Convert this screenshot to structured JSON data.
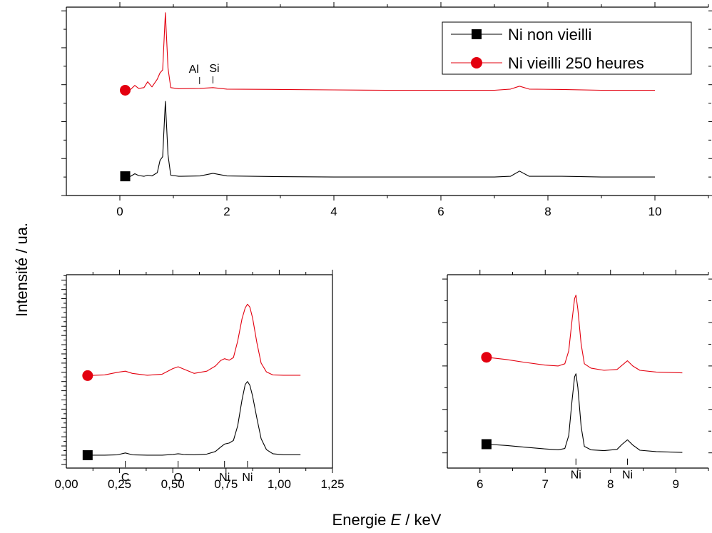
{
  "colors": {
    "aged": "#e3000f",
    "fresh": "#000000",
    "axis": "#000000"
  },
  "ylabel": "Intensité / ua.",
  "xlabel": {
    "prefix": "Energie ",
    "symbol": "E",
    "suffix": " / keV"
  },
  "legend": [
    {
      "label": "Ni non vieilli",
      "marker": "square",
      "color": "#000000"
    },
    {
      "label": "Ni vieilli 250 heures",
      "marker": "circle",
      "color": "#e3000f"
    }
  ],
  "chart_data": [
    {
      "id": "top",
      "type": "line",
      "xlim": [
        -1,
        11
      ],
      "xticks": [
        0,
        2,
        4,
        6,
        8,
        10
      ],
      "tick_labels": [
        "0",
        "2",
        "4",
        "6",
        "8",
        "10"
      ],
      "y_axis_labels": false,
      "peak_labels": [
        {
          "text": "Al",
          "x": 1.49,
          "series": "Ni vieilli 250 heures"
        },
        {
          "text": "Si",
          "x": 1.74,
          "series": "Ni vieilli 250 heures"
        }
      ],
      "series": [
        {
          "name": "Ni non vieilli",
          "color": "#000000",
          "marker": "square",
          "x": [
            0.1,
            0.2,
            0.28,
            0.35,
            0.45,
            0.52,
            0.6,
            0.7,
            0.75,
            0.8,
            0.85,
            0.9,
            0.95,
            1.1,
            1.5,
            1.74,
            2.0,
            3.0,
            4.0,
            5.0,
            6.0,
            7.0,
            7.3,
            7.47,
            7.65,
            8.26,
            9.0,
            10.0
          ],
          "y": [
            0.02,
            0.02,
            0.09,
            0.04,
            0.02,
            0.05,
            0.03,
            0.12,
            0.45,
            0.55,
            2.05,
            0.6,
            0.05,
            0.02,
            0.03,
            0.1,
            0.03,
            0.01,
            0.0,
            0.0,
            0.0,
            0.0,
            0.02,
            0.16,
            0.02,
            0.02,
            0.0,
            0.0
          ]
        },
        {
          "name": "Ni vieilli 250 heures",
          "color": "#e3000f",
          "marker": "circle",
          "x": [
            0.1,
            0.2,
            0.28,
            0.35,
            0.45,
            0.52,
            0.6,
            0.7,
            0.75,
            0.8,
            0.85,
            0.9,
            0.95,
            1.1,
            1.49,
            1.74,
            2.0,
            3.0,
            4.0,
            5.0,
            6.0,
            7.0,
            7.3,
            7.47,
            7.65,
            8.26,
            9.0,
            10.0
          ],
          "y": [
            2.35,
            2.37,
            2.48,
            2.4,
            2.42,
            2.58,
            2.44,
            2.65,
            2.82,
            2.9,
            4.45,
            2.95,
            2.42,
            2.39,
            2.4,
            2.42,
            2.38,
            2.37,
            2.36,
            2.35,
            2.35,
            2.35,
            2.38,
            2.46,
            2.38,
            2.37,
            2.35,
            2.35
          ]
        }
      ]
    },
    {
      "id": "bottom-left",
      "type": "line",
      "xlim": [
        0,
        1.25
      ],
      "xticks": [
        0,
        0.25,
        0.5,
        0.75,
        1.0,
        1.25
      ],
      "tick_labels": [
        "0,00",
        "0,25",
        "0,50",
        "0,75",
        "1,00",
        "1,25"
      ],
      "y_axis_labels": false,
      "peak_labels": [
        {
          "text": "C",
          "x": 0.277,
          "series": "Ni non vieilli"
        },
        {
          "text": "O",
          "x": 0.525,
          "series": "Ni non vieilli"
        },
        {
          "text": "Ni",
          "x": 0.743,
          "series": "Ni non vieilli"
        },
        {
          "text": "Ni",
          "x": 0.851,
          "series": "Ni non vieilli"
        }
      ],
      "series": [
        {
          "name": "Ni non vieilli",
          "color": "#000000",
          "marker": "square",
          "x": [
            0.1,
            0.18,
            0.24,
            0.277,
            0.31,
            0.38,
            0.45,
            0.5,
            0.525,
            0.55,
            0.6,
            0.66,
            0.7,
            0.725,
            0.743,
            0.765,
            0.785,
            0.805,
            0.825,
            0.84,
            0.851,
            0.862,
            0.875,
            0.895,
            0.915,
            0.94,
            0.97,
            1.02,
            1.1
          ],
          "y": [
            0.0,
            0.0,
            0.01,
            0.06,
            0.01,
            0.0,
            0.0,
            0.02,
            0.04,
            0.02,
            0.01,
            0.03,
            0.1,
            0.22,
            0.3,
            0.33,
            0.4,
            0.8,
            1.5,
            1.92,
            2.0,
            1.9,
            1.6,
            1.0,
            0.45,
            0.15,
            0.04,
            0.01,
            0.01
          ]
        },
        {
          "name": "Ni vieilli 250 heures",
          "color": "#e3000f",
          "marker": "circle",
          "x": [
            0.1,
            0.18,
            0.24,
            0.277,
            0.31,
            0.38,
            0.45,
            0.5,
            0.525,
            0.55,
            0.6,
            0.66,
            0.7,
            0.725,
            0.743,
            0.765,
            0.785,
            0.805,
            0.825,
            0.84,
            0.851,
            0.862,
            0.875,
            0.895,
            0.915,
            0.94,
            0.97,
            1.02,
            1.1
          ],
          "y": [
            2.16,
            2.18,
            2.25,
            2.28,
            2.22,
            2.17,
            2.2,
            2.35,
            2.4,
            2.34,
            2.22,
            2.28,
            2.42,
            2.57,
            2.62,
            2.58,
            2.65,
            3.1,
            3.7,
            4.0,
            4.1,
            4.02,
            3.72,
            3.05,
            2.5,
            2.26,
            2.18,
            2.17,
            2.17
          ]
        }
      ]
    },
    {
      "id": "bottom-right",
      "type": "line",
      "xlim": [
        5.5,
        9.5
      ],
      "xticks": [
        6,
        7,
        8,
        9
      ],
      "tick_labels": [
        "6",
        "7",
        "8",
        "9"
      ],
      "y_axis_labels": false,
      "peak_labels": [
        {
          "text": "Ni",
          "x": 7.47,
          "series": "Ni non vieilli"
        },
        {
          "text": "Ni",
          "x": 8.26,
          "series": "Ni non vieilli"
        }
      ],
      "series": [
        {
          "name": "Ni non vieilli",
          "color": "#000000",
          "marker": "square",
          "x": [
            6.1,
            6.4,
            6.7,
            7.0,
            7.2,
            7.3,
            7.36,
            7.41,
            7.45,
            7.47,
            7.5,
            7.55,
            7.6,
            7.7,
            7.9,
            8.1,
            8.18,
            8.26,
            8.34,
            8.45,
            8.7,
            9.1
          ],
          "y": [
            0.2,
            0.17,
            0.13,
            0.09,
            0.07,
            0.1,
            0.4,
            1.2,
            1.75,
            1.82,
            1.5,
            0.6,
            0.15,
            0.07,
            0.05,
            0.08,
            0.2,
            0.3,
            0.18,
            0.06,
            0.03,
            0.01
          ]
        },
        {
          "name": "Ni vieilli 250 heures",
          "color": "#e3000f",
          "marker": "circle",
          "x": [
            6.1,
            6.4,
            6.7,
            7.0,
            7.2,
            7.3,
            7.36,
            7.41,
            7.45,
            7.47,
            7.5,
            7.55,
            7.6,
            7.7,
            7.9,
            8.1,
            8.18,
            8.26,
            8.34,
            8.45,
            8.7,
            9.1
          ],
          "y": [
            2.2,
            2.15,
            2.08,
            2.02,
            2.0,
            2.05,
            2.35,
            3.05,
            3.55,
            3.63,
            3.3,
            2.5,
            2.05,
            1.95,
            1.9,
            1.92,
            2.02,
            2.12,
            2.0,
            1.9,
            1.86,
            1.84
          ]
        }
      ]
    }
  ]
}
